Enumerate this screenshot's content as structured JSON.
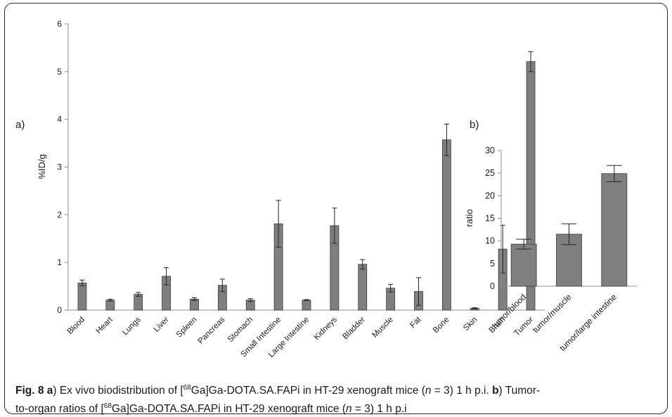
{
  "figure_label": "Fig. 8",
  "caption_lines": [
    {
      "parts": [
        {
          "t": "Fig. 8 ",
          "b": true
        },
        {
          "t": "a",
          "b": true
        },
        {
          "t": ") Ex vivo biodistribution of ["
        },
        {
          "t": "68",
          "sup": true
        },
        {
          "t": "Ga]Ga-DOTA.SA.FAPi in HT-29 xenograft mice ("
        },
        {
          "t": "n",
          "i": true
        },
        {
          "t": " = 3) 1 h p.i. "
        },
        {
          "t": "b",
          "b": true
        },
        {
          "t": ") Tumor-"
        }
      ]
    },
    {
      "parts": [
        {
          "t": "to-organ ratios of ["
        },
        {
          "t": "68",
          "sup": true
        },
        {
          "t": "Ga]Ga-DOTA.SA.FAPi in HT-29 xenograft mice ("
        },
        {
          "t": "n",
          "i": true
        },
        {
          "t": " = 3) 1 h p.i"
        }
      ]
    }
  ],
  "colors": {
    "bar": "#7f7f7f",
    "bar_edge": "#3a3a3a",
    "axis": "#8c8c8c",
    "text": "#1a1a1a"
  },
  "chart_data": [
    {
      "panel": "a)",
      "type": "bar",
      "ylabel": "%ID/g",
      "ylim": [
        0,
        6
      ],
      "yticks": [
        0,
        1,
        2,
        3,
        4,
        5,
        6
      ],
      "grid": false,
      "error_bars": true,
      "categories": [
        "Blood",
        "Heart",
        "Lungs",
        "Liver",
        "Spleen",
        "Pancreas",
        "Stomach",
        "Small Intestine",
        "Large Intestine",
        "Kidneys",
        "Bladder",
        "Muscle",
        "Fat",
        "Bone",
        "Skin",
        "Brain",
        "Tumor"
      ],
      "values": [
        0.57,
        0.21,
        0.33,
        0.71,
        0.23,
        0.52,
        0.21,
        1.81,
        0.21,
        1.77,
        0.96,
        0.46,
        0.39,
        3.57,
        0.04,
        1.28,
        5.21
      ],
      "errors": [
        0.06,
        0.02,
        0.04,
        0.18,
        0.03,
        0.13,
        0.03,
        0.49,
        0.01,
        0.37,
        0.1,
        0.08,
        0.29,
        0.33,
        0.01,
        0.5,
        0.21
      ]
    },
    {
      "panel": "b)",
      "type": "bar",
      "ylabel": "ratio",
      "ylim": [
        0,
        30
      ],
      "yticks": [
        0,
        5,
        10,
        15,
        20,
        25,
        30
      ],
      "grid": false,
      "error_bars": true,
      "categories": [
        "tumor/blood",
        "tumor/muscle",
        "tumor/large intestine"
      ],
      "values": [
        9.3,
        11.5,
        24.9
      ],
      "errors": [
        1.1,
        2.3,
        1.8
      ]
    }
  ]
}
